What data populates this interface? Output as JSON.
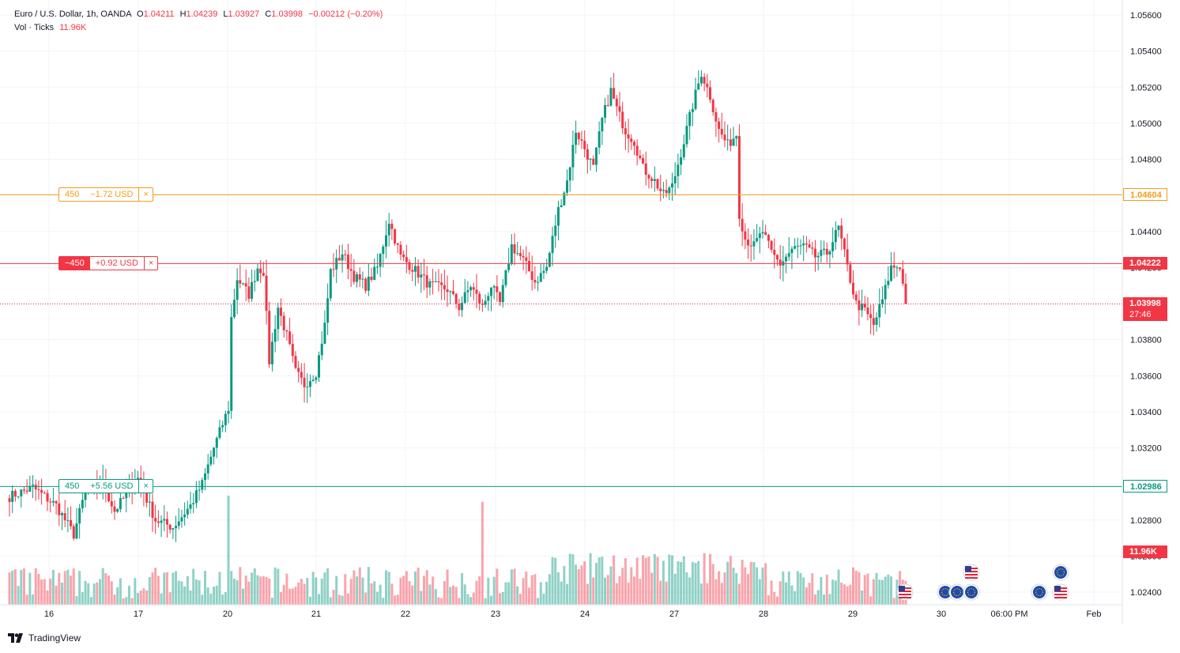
{
  "header": {
    "symbol": "Euro / U.S. Dollar, 1h, OANDA",
    "o_label": "O",
    "o": "1.04211",
    "h_label": "H",
    "h": "1.04239",
    "l_label": "L",
    "l": "1.03927",
    "c_label": "C",
    "c": "1.03998",
    "change": "−0.00212 (−0.20%)",
    "vol_label": "Vol · Ticks",
    "vol": "11.96K"
  },
  "orders": [
    {
      "qty": "450",
      "pnl": "−1.72 USD",
      "close": "×",
      "price": 1.04604,
      "price_label": "1.04604",
      "color": "#f59c1a"
    },
    {
      "qty": "−450",
      "pnl": "+0.92 USD",
      "close": "×",
      "price": 1.04222,
      "price_label": "1.04222",
      "color": "#f23645"
    },
    {
      "qty": "450",
      "pnl": "+5.56 USD",
      "close": "×",
      "price": 1.02986,
      "price_label": "1.02986",
      "color": "#089981"
    }
  ],
  "last_price": {
    "price": 1.03998,
    "label": "1.03998",
    "countdown": "27:46"
  },
  "volume_label": "11.96K",
  "brand": "TradingView",
  "colors": {
    "up": "#089981",
    "down": "#f23645",
    "grid": "#f0f3fa",
    "text": "#131722"
  },
  "chart_data": {
    "type": "candlestick",
    "title": "Euro / U.S. Dollar, 1h, OANDA",
    "ylim": [
      1.0233,
      1.0568
    ],
    "yticks": [
      "1.02400",
      "1.02600",
      "1.02800",
      "1.03000",
      "1.03200",
      "1.03400",
      "1.03600",
      "1.03800",
      "1.04000",
      "1.04200",
      "1.04400",
      "1.04600",
      "1.04800",
      "1.05000",
      "1.05200",
      "1.05400",
      "1.05600"
    ],
    "xticks": [
      "16",
      "17",
      "20",
      "21",
      "22",
      "23",
      "24",
      "27",
      "28",
      "29",
      "30",
      "06:00 PM",
      "Feb"
    ],
    "grid": true,
    "series": [
      {
        "name": "EUR/USD",
        "anchors": [
          [
            0,
            1.0293
          ],
          [
            8,
            1.0298
          ],
          [
            16,
            1.0288
          ],
          [
            22,
            1.0272
          ],
          [
            26,
            1.0296
          ],
          [
            32,
            1.03
          ],
          [
            36,
            1.0285
          ],
          [
            44,
            1.0303
          ],
          [
            50,
            1.028
          ],
          [
            56,
            1.0276
          ],
          [
            62,
            1.0288
          ],
          [
            66,
            1.03
          ],
          [
            70,
            1.032
          ],
          [
            75,
            1.0342
          ],
          [
            76,
            1.0392
          ],
          [
            78,
            1.0414
          ],
          [
            82,
            1.0405
          ],
          [
            85,
            1.042
          ],
          [
            87,
            1.0418
          ],
          [
            89,
            1.0368
          ],
          [
            92,
            1.0398
          ],
          [
            95,
            1.0382
          ],
          [
            98,
            1.0362
          ],
          [
            101,
            1.0355
          ],
          [
            105,
            1.0362
          ],
          [
            108,
            1.0388
          ],
          [
            110,
            1.0418
          ],
          [
            114,
            1.0428
          ],
          [
            118,
            1.0415
          ],
          [
            122,
            1.041
          ],
          [
            126,
            1.042
          ],
          [
            130,
            1.0446
          ],
          [
            134,
            1.0426
          ],
          [
            138,
            1.042
          ],
          [
            144,
            1.041
          ],
          [
            150,
            1.0408
          ],
          [
            154,
            1.0398
          ],
          [
            158,
            1.041
          ],
          [
            162,
            1.0398
          ],
          [
            165,
            1.041
          ],
          [
            168,
            1.04
          ],
          [
            172,
            1.0432
          ],
          [
            176,
            1.0424
          ],
          [
            180,
            1.0412
          ],
          [
            184,
            1.042
          ],
          [
            188,
            1.0452
          ],
          [
            191,
            1.0468
          ],
          [
            194,
            1.0496
          ],
          [
            197,
            1.0486
          ],
          [
            200,
            1.0475
          ],
          [
            203,
            1.0502
          ],
          [
            206,
            1.0518
          ],
          [
            208,
            1.0508
          ],
          [
            211,
            1.0496
          ],
          [
            214,
            1.049
          ],
          [
            217,
            1.0475
          ],
          [
            221,
            1.0468
          ],
          [
            224,
            1.046
          ],
          [
            227,
            1.0465
          ],
          [
            231,
            1.049
          ],
          [
            234,
            1.051
          ],
          [
            237,
            1.0528
          ],
          [
            240,
            1.0515
          ],
          [
            243,
            1.0496
          ],
          [
            246,
            1.0488
          ],
          [
            249,
            1.0494
          ],
          [
            250,
            1.045
          ],
          [
            252,
            1.0436
          ],
          [
            255,
            1.0432
          ],
          [
            258,
            1.044
          ],
          [
            261,
            1.0428
          ],
          [
            264,
            1.0422
          ],
          [
            268,
            1.043
          ],
          [
            272,
            1.0432
          ],
          [
            276,
            1.0426
          ],
          [
            280,
            1.0428
          ],
          [
            284,
            1.0442
          ],
          [
            287,
            1.042
          ],
          [
            290,
            1.04
          ],
          [
            293,
            1.0396
          ],
          [
            296,
            1.0388
          ],
          [
            299,
            1.0402
          ],
          [
            302,
            1.042
          ],
          [
            305,
            1.0421
          ],
          [
            307,
            1.04
          ]
        ]
      }
    ]
  }
}
